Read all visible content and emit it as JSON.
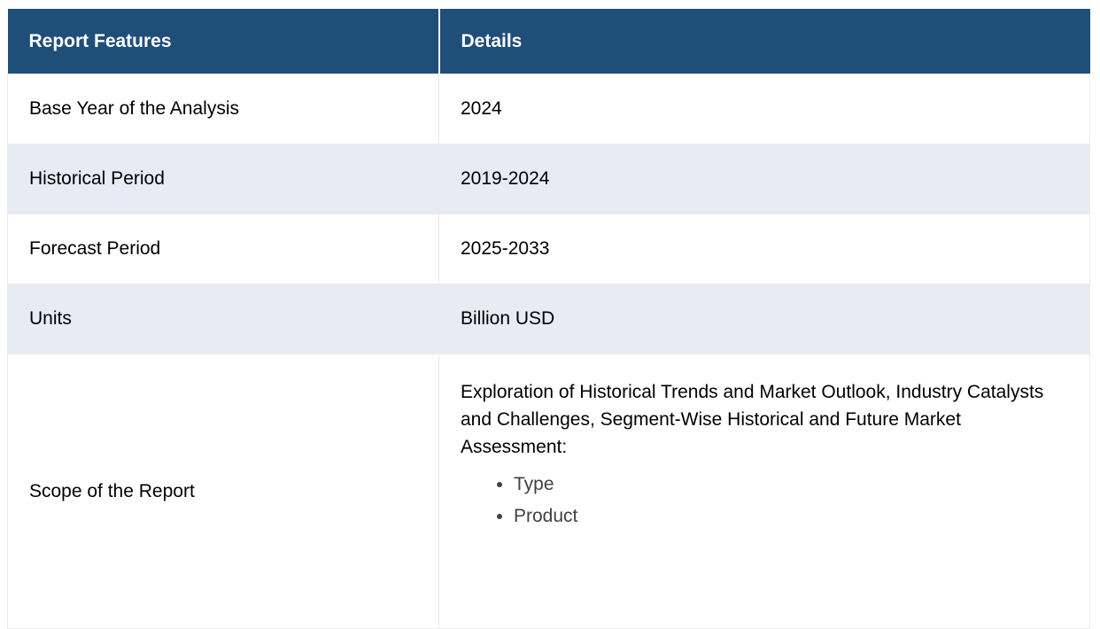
{
  "table": {
    "headers": {
      "feature": "Report Features",
      "detail": "Details"
    },
    "rows": [
      {
        "feature": "Base Year of the Analysis",
        "detail": "2024"
      },
      {
        "feature": "Historical Period",
        "detail": "2019-2024"
      },
      {
        "feature": "Forecast Period",
        "detail": "2025-2033"
      },
      {
        "feature": "Units",
        "detail": "Billion USD"
      },
      {
        "feature": "Scope of the Report",
        "detail_paragraph": "Exploration of Historical Trends and Market Outlook, Industry Catalysts and Challenges, Segment-Wise Historical and Future Market Assessment:",
        "bullets": [
          "Type",
          "Product"
        ]
      }
    ]
  },
  "colors": {
    "header_bg": "#1F4E78",
    "header_text": "#FFFFFF",
    "row_bg": "#FFFFFF",
    "row_alt_bg": "#E8EAF4",
    "body_text": "#000000",
    "bullet_text": "#414141",
    "cell_border": "#ECECEC"
  }
}
